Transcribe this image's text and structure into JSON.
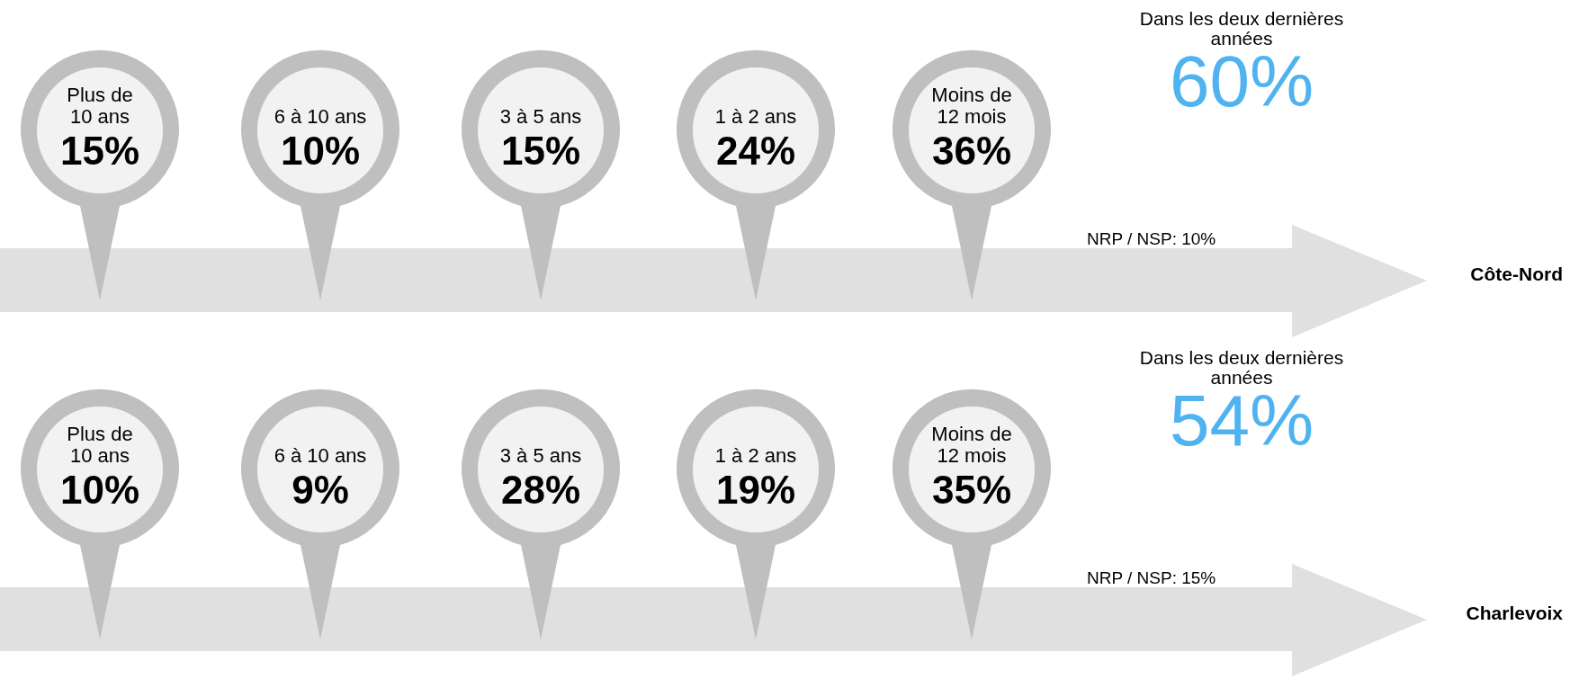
{
  "chart_data": [
    {
      "type": "other",
      "title": "Côte-Nord",
      "categories": [
        "Plus de\n10 ans",
        "6 à 10 ans",
        "3 à 5 ans",
        "1 à 2 ans",
        "Moins de\n12 mois"
      ],
      "values": [
        15,
        10,
        15,
        24,
        36
      ],
      "value_labels": [
        "15%",
        "10%",
        "15%",
        "24%",
        "36%"
      ],
      "color": "#bfbfbf",
      "annotations": [
        "Dans les deux dernières\nannées",
        "60%",
        "NRP / NSP: 10%"
      ]
    },
    {
      "type": "other",
      "title": "Charlevoix",
      "categories": [
        "Plus de\n10 ans",
        "6 à 10 ans",
        "3 à 5 ans",
        "1 à 2 ans",
        "Moins de\n12 mois"
      ],
      "values": [
        10,
        9,
        28,
        19,
        35
      ],
      "value_labels": [
        "10%",
        "9%",
        "28%",
        "19%",
        "35%"
      ],
      "color": "#bfbfbf",
      "annotations": [
        "Dans les deux dernières\nannées",
        "54%",
        "NRP / NSP: 15%"
      ]
    }
  ]
}
